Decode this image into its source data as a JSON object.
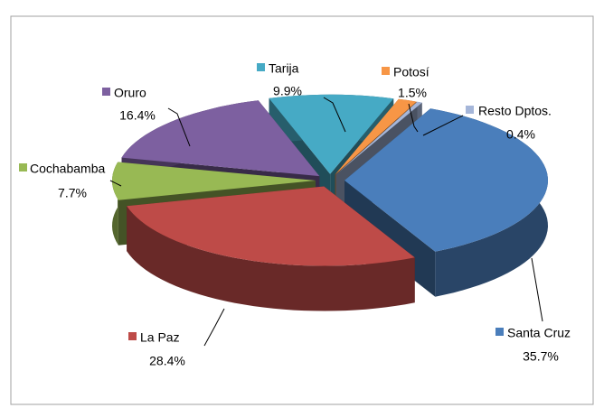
{
  "chart_data": {
    "type": "pie3d",
    "categories": [
      "Santa Cruz",
      "La Paz",
      "Cochabamba",
      "Oruro",
      "Tarija",
      "Potosí",
      "Resto Dptos."
    ],
    "values": [
      35.7,
      28.4,
      7.7,
      16.4,
      9.9,
      1.5,
      0.4
    ],
    "value_labels": [
      "35.7%",
      "28.4%",
      "7.7%",
      "16.4%",
      "9.9%",
      "1.5%",
      "0.4%"
    ],
    "colors": [
      "#4a7ebb",
      "#be4b48",
      "#98b954",
      "#7d60a0",
      "#46aac5",
      "#f79646",
      "#a5b6d9"
    ]
  }
}
